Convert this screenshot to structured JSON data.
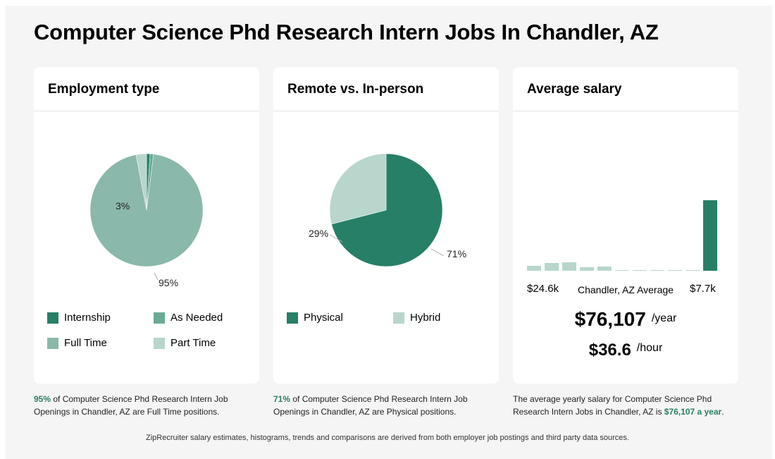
{
  "page_title": "Computer Science Phd Research Intern Jobs In Chandler, AZ",
  "colors": {
    "internship": "#277f67",
    "as_needed": "#6aab97",
    "full_time": "#8ab8aa",
    "part_time": "#b8d6cc",
    "physical": "#277f67",
    "hybrid": "#b8d6cc",
    "hist_bar": "#b8d6cc",
    "hist_highlight": "#277f67",
    "accent": "#2a7f62"
  },
  "employment": {
    "title": "Employment type",
    "labels": {
      "small": "3%",
      "large": "95%"
    },
    "legend": [
      "Internship",
      "As Needed",
      "Full Time",
      "Part Time"
    ],
    "caption_pct": "95%",
    "caption_text": " of Computer Science Phd Research Intern Job Openings in Chandler, AZ are Full Time positions."
  },
  "remote": {
    "title": "Remote vs. In-person",
    "labels": {
      "hybrid": "29%",
      "physical": "71%"
    },
    "legend": [
      "Physical",
      "Hybrid"
    ],
    "caption_pct": "71%",
    "caption_text": " of Computer Science Phd Research Intern Job Openings in Chandler, AZ are Physical positions."
  },
  "salary": {
    "title": "Average salary",
    "left_label": "$24.6k",
    "mid_label": "Chandler, AZ Average",
    "right_label": "$7.7k",
    "yearly": "$76,107",
    "yearly_unit": "/year",
    "hourly": "$36.6",
    "hourly_unit": "/hour",
    "caption_text": "The average yearly salary for Computer Science Phd Research Intern Jobs in Chandler, AZ is ",
    "caption_value": "$76,107 a year",
    "caption_end": "."
  },
  "footer": "ZipRecruiter salary estimates, histograms, trends and comparisons are derived from both employer job postings and third party data sources.",
  "chart_data": [
    {
      "type": "pie",
      "title": "Employment type",
      "categories": [
        "Internship",
        "As Needed",
        "Full Time",
        "Part Time"
      ],
      "values": [
        1,
        1,
        95,
        3
      ],
      "data_labels": [
        "",
        "",
        "95%",
        "3%"
      ]
    },
    {
      "type": "pie",
      "title": "Remote vs. In-person",
      "categories": [
        "Physical",
        "Hybrid"
      ],
      "values": [
        71,
        29
      ],
      "data_labels": [
        "71%",
        "29%"
      ]
    },
    {
      "type": "bar",
      "title": "Average salary",
      "values": [
        0.07,
        0.11,
        0.12,
        0.05,
        0.06,
        0.01,
        0.005,
        0.005,
        0.005,
        0.01,
        1.0
      ],
      "highlight_index": 10,
      "xlabel_left": "$24.6k",
      "xlabel_mid": "Chandler, AZ Average",
      "xlabel_right": "$7.7k"
    }
  ]
}
